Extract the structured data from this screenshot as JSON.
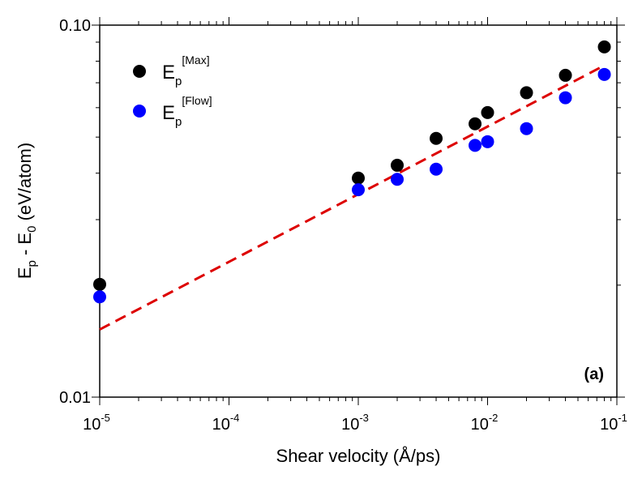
{
  "chart_data": {
    "type": "scatter",
    "xscale": "log",
    "yscale": "log",
    "xlim": [
      1e-05,
      0.1
    ],
    "ylim": [
      0.01,
      0.1
    ],
    "xlabel": "Shear velocity (Å/ps)",
    "ylabel": {
      "main": "E",
      "sub": "p",
      "mid": " - E",
      "sub2": "0",
      "unit": " (eV/atom)"
    },
    "panel_label": "(a)",
    "x_ticks": [
      {
        "base": "10",
        "exp": "-5",
        "value": 1e-05
      },
      {
        "base": "10",
        "exp": "-4",
        "value": 0.0001
      },
      {
        "base": "10",
        "exp": "-3",
        "value": 0.001
      },
      {
        "base": "10",
        "exp": "-2",
        "value": 0.01
      },
      {
        "base": "10",
        "exp": "-1",
        "value": 0.1
      }
    ],
    "y_ticks": [
      {
        "label": "0.01",
        "value": 0.01
      },
      {
        "label": "0.10",
        "value": 0.1
      }
    ],
    "series": [
      {
        "legend_main": "E",
        "legend_sub": "p",
        "legend_sup": "[Max]",
        "color": "#000000",
        "x": [
          1e-05,
          0.001,
          0.002,
          0.004,
          0.008,
          0.01,
          0.02,
          0.04,
          0.08
        ],
        "y": [
          0.0201,
          0.0388,
          0.042,
          0.0496,
          0.0543,
          0.0582,
          0.0658,
          0.0733,
          0.0874
        ]
      },
      {
        "legend_main": "E",
        "legend_sub": "p",
        "legend_sup": "[Flow]",
        "color": "#0000ff",
        "x": [
          1e-05,
          0.001,
          0.002,
          0.004,
          0.008,
          0.01,
          0.02,
          0.04,
          0.08
        ],
        "y": [
          0.0186,
          0.0361,
          0.0385,
          0.041,
          0.0475,
          0.0486,
          0.0527,
          0.0638,
          0.0737
        ]
      }
    ],
    "fit_line": {
      "color": "#dd0000",
      "style": "dashed",
      "x": [
        1e-05,
        0.08
      ],
      "y": [
        0.0152,
        0.0779
      ]
    }
  }
}
